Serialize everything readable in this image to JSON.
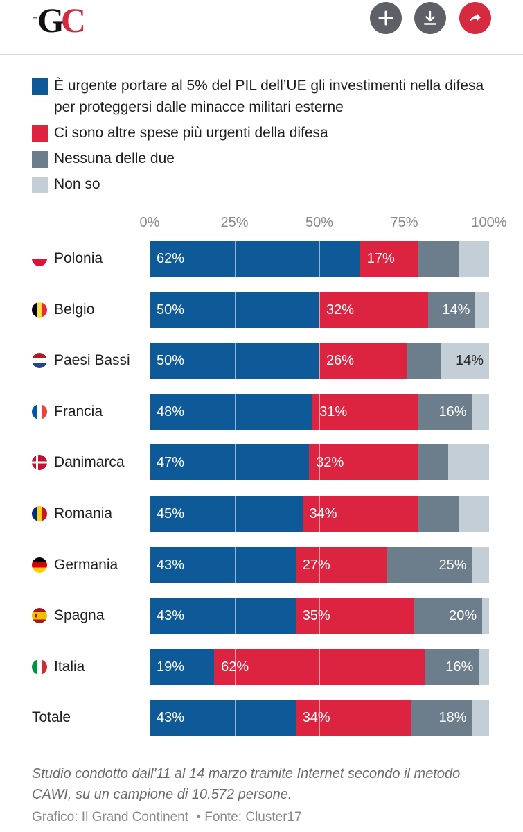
{
  "header": {
    "logo_small": "IL",
    "logo_g": "G",
    "logo_c": "C",
    "buttons": [
      "add-icon",
      "download-icon",
      "share-icon"
    ],
    "accent_color": "#d62b3e",
    "button_color": "#5d6167"
  },
  "chart_data": {
    "type": "bar",
    "orientation": "horizontal",
    "stacked": true,
    "categories": [
      "Polonia",
      "Belgio",
      "Paesi Bassi",
      "Francia",
      "Danimarca",
      "Romania",
      "Germania",
      "Spagna",
      "Italia",
      "Totale"
    ],
    "series": [
      {
        "name": "È urgente portare al 5% del PIL dell’UE gli investimenti nella difesa per proteggersi dalle minacce militari esterne",
        "color": "#0e5a99",
        "values": [
          62,
          50,
          50,
          48,
          47,
          45,
          43,
          43,
          19,
          43
        ]
      },
      {
        "name": "Ci sono altre spese più urgenti della difesa",
        "color": "#dc233f",
        "values": [
          17,
          32,
          26,
          31,
          32,
          34,
          27,
          35,
          62,
          34
        ]
      },
      {
        "name": "Nessuna delle due",
        "color": "#6c7e8b",
        "values": [
          12,
          14,
          10,
          16,
          9,
          12,
          25,
          20,
          16,
          18
        ]
      },
      {
        "name": "Non so",
        "color": "#c3ced7",
        "values": [
          9,
          4,
          14,
          5,
          12,
          9,
          5,
          2,
          3,
          5
        ]
      }
    ],
    "labels_shown": [
      [
        "62%",
        "17%",
        "",
        ""
      ],
      [
        "50%",
        "32%",
        "14%",
        ""
      ],
      [
        "50%",
        "26%",
        "",
        "14%"
      ],
      [
        "48%",
        "31%",
        "16%",
        ""
      ],
      [
        "47%",
        "32%",
        "",
        ""
      ],
      [
        "45%",
        "34%",
        "",
        ""
      ],
      [
        "43%",
        "27%",
        "25%",
        ""
      ],
      [
        "43%",
        "35%",
        "20%",
        ""
      ],
      [
        "19%",
        "62%",
        "16%",
        ""
      ],
      [
        "43%",
        "34%",
        "18%",
        ""
      ]
    ],
    "x_ticks": [
      "0%",
      "25%",
      "50%",
      "75%",
      "100%"
    ],
    "xlim": [
      0,
      100
    ],
    "grid": true,
    "legend": "top",
    "flags": [
      "poland",
      "belgium",
      "netherlands",
      "france",
      "denmark",
      "romania",
      "germany",
      "spain",
      "italy",
      ""
    ]
  },
  "note": "Studio condotto dall'11 al 14 marzo tramite Internet secondo il metodo CAWI, su un campione di 10.572 persone.",
  "credit": {
    "graphic": "Grafico: Il Grand Continent",
    "source": "• Fonte: Cluster17"
  }
}
